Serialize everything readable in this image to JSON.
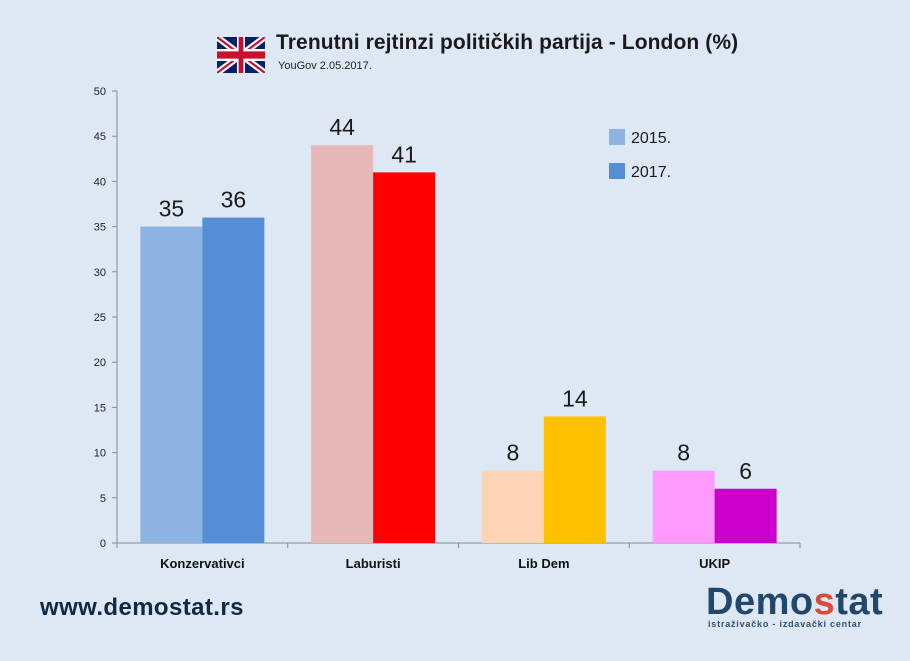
{
  "header": {
    "flag_icon": "uk-flag-icon",
    "title": "Trenutni rejtinzi političkih partija - London (%)",
    "subtitle": "YouGov 2.05.2017."
  },
  "footer": {
    "website": "www.demostat.rs",
    "logo": {
      "part1": "Demo",
      "part2": "s",
      "part3": "tat",
      "tagline": "istraživačko - izdavački centar"
    }
  },
  "colors": {
    "background": "#dde8f4",
    "axis": "#8a8a8a",
    "konz_2015": "#8db3e2",
    "konz_2017": "#558ed5",
    "lab_2015": "#e6b9b8",
    "lab_2017": "#ff0000",
    "lib_2015": "#fcd5b5",
    "lib_2017": "#ffc000",
    "ukip_2015": "#ff99ff",
    "ukip_2017": "#cc00cc"
  },
  "chart_data": {
    "type": "bar",
    "title": "Trenutni rejtinzi političkih partija - London (%)",
    "categories": [
      "Konzervativci",
      "Laburisti",
      "Lib Dem",
      "UKIP"
    ],
    "series": [
      {
        "name": "2015.",
        "values": [
          35,
          44,
          8,
          8
        ]
      },
      {
        "name": "2017.",
        "values": [
          36,
          41,
          14,
          6
        ]
      }
    ],
    "bar_colors": [
      [
        "#8db3e2",
        "#e6b9b8",
        "#fcd5b5",
        "#ff99ff"
      ],
      [
        "#558ed5",
        "#ff0000",
        "#ffc000",
        "#cc00cc"
      ]
    ],
    "legend": [
      {
        "label": "2015.",
        "color": "#8db3e2"
      },
      {
        "label": "2017.",
        "color": "#558ed5"
      }
    ],
    "legend_position": "top-right",
    "ylim": [
      0,
      50
    ],
    "yticks": [
      0,
      5,
      10,
      15,
      20,
      25,
      30,
      35,
      40,
      45,
      50
    ],
    "xlabel": "",
    "ylabel": "",
    "grid": false
  }
}
